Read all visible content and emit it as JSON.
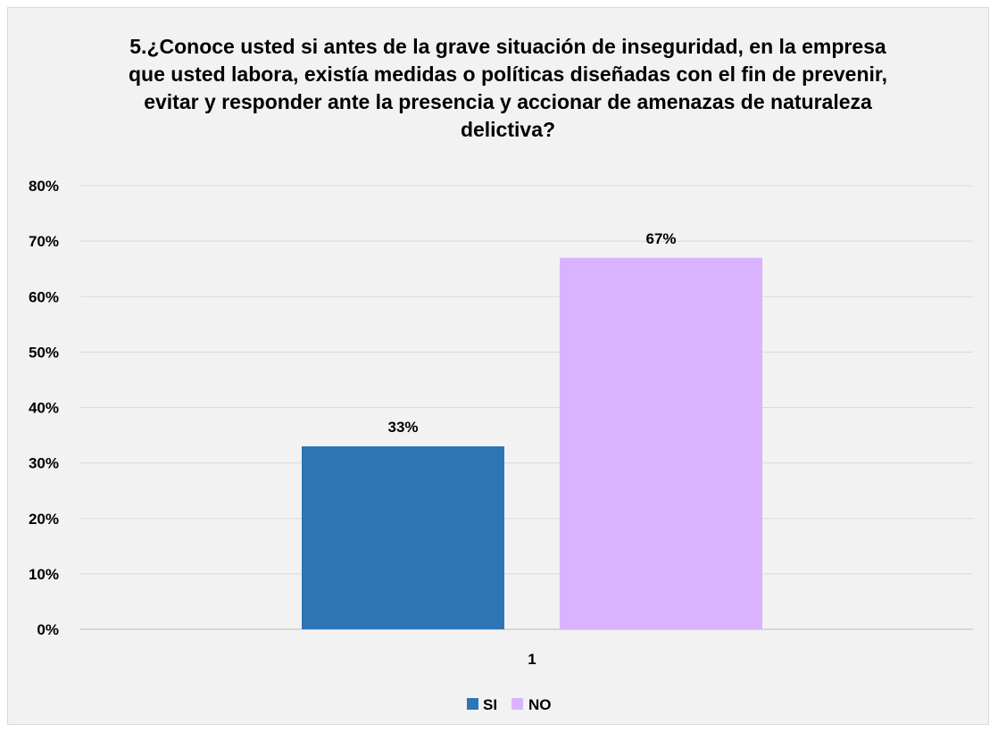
{
  "chart_data": {
    "type": "bar",
    "title": "5.¿Conoce usted si antes de la grave situación de inseguridad, en la empresa que usted labora, existía medidas o políticas diseñadas con el fin de prevenir, evitar y responder ante la presencia y accionar de amenazas de naturaleza delictiva?",
    "categories": [
      "1"
    ],
    "series": [
      {
        "name": "SI",
        "values": [
          0.33
        ],
        "label": "33%",
        "color": "#2e75b6"
      },
      {
        "name": "NO",
        "values": [
          0.67
        ],
        "label": "67%",
        "color": "#d9b3ff"
      }
    ],
    "ylim": [
      0,
      0.8
    ],
    "yticks": [
      {
        "value": 0.0,
        "label": "0%"
      },
      {
        "value": 0.1,
        "label": "10%"
      },
      {
        "value": 0.2,
        "label": "20%"
      },
      {
        "value": 0.3,
        "label": "30%"
      },
      {
        "value": 0.4,
        "label": "40%"
      },
      {
        "value": 0.5,
        "label": "50%"
      },
      {
        "value": 0.6,
        "label": "60%"
      },
      {
        "value": 0.7,
        "label": "70%"
      },
      {
        "value": 0.8,
        "label": "80%"
      }
    ],
    "xlabel": "",
    "ylabel": "",
    "grid": true,
    "legend": "bottom",
    "colors": {
      "background": "#f2f2f2",
      "gridline": "#d9d9d9"
    }
  }
}
